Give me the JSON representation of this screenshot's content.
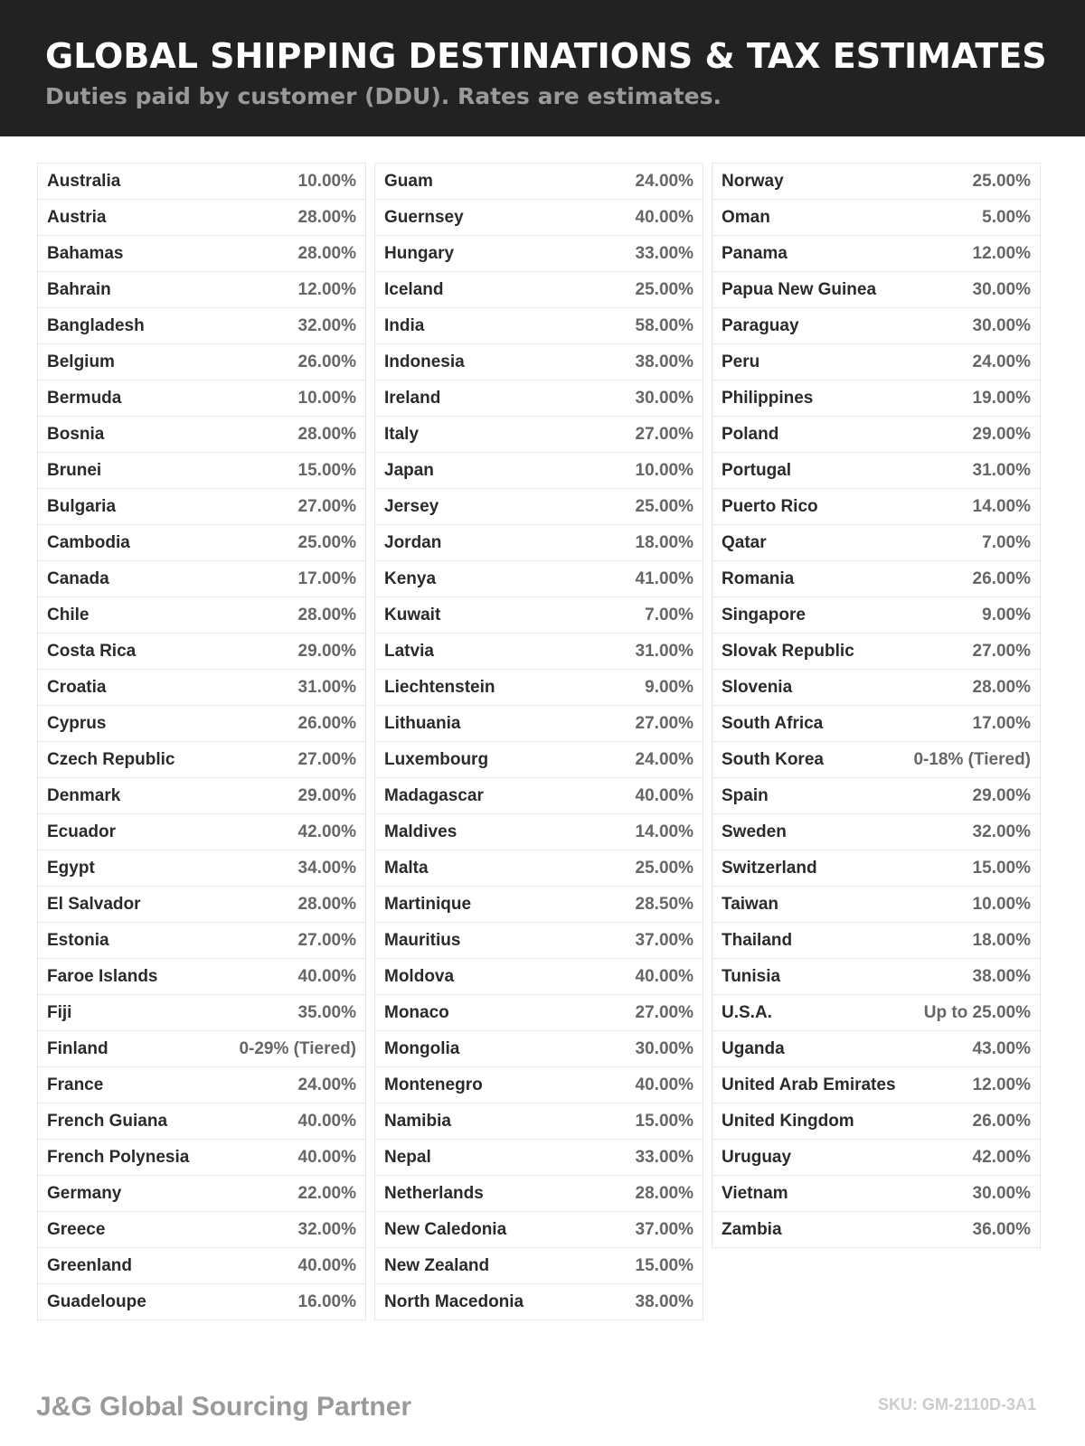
{
  "header": {
    "title": "GLOBAL SHIPPING DESTINATIONS & TAX ESTIMATES",
    "subtitle": "Duties paid by customer (DDU). Rates are estimates."
  },
  "columns": [
    [
      {
        "country": "Australia",
        "rate": "10.00%"
      },
      {
        "country": "Austria",
        "rate": "28.00%"
      },
      {
        "country": "Bahamas",
        "rate": "28.00%"
      },
      {
        "country": "Bahrain",
        "rate": "12.00%"
      },
      {
        "country": "Bangladesh",
        "rate": "32.00%"
      },
      {
        "country": "Belgium",
        "rate": "26.00%"
      },
      {
        "country": "Bermuda",
        "rate": "10.00%"
      },
      {
        "country": "Bosnia",
        "rate": "28.00%"
      },
      {
        "country": "Brunei",
        "rate": "15.00%"
      },
      {
        "country": "Bulgaria",
        "rate": "27.00%"
      },
      {
        "country": "Cambodia",
        "rate": "25.00%"
      },
      {
        "country": "Canada",
        "rate": "17.00%"
      },
      {
        "country": "Chile",
        "rate": "28.00%"
      },
      {
        "country": "Costa Rica",
        "rate": "29.00%"
      },
      {
        "country": "Croatia",
        "rate": "31.00%"
      },
      {
        "country": "Cyprus",
        "rate": "26.00%"
      },
      {
        "country": "Czech Republic",
        "rate": "27.00%"
      },
      {
        "country": "Denmark",
        "rate": "29.00%"
      },
      {
        "country": "Ecuador",
        "rate": "42.00%"
      },
      {
        "country": "Egypt",
        "rate": "34.00%"
      },
      {
        "country": "El Salvador",
        "rate": "28.00%"
      },
      {
        "country": "Estonia",
        "rate": "27.00%"
      },
      {
        "country": "Faroe Islands",
        "rate": "40.00%"
      },
      {
        "country": "Fiji",
        "rate": "35.00%"
      },
      {
        "country": "Finland",
        "rate": "0-29% (Tiered)"
      },
      {
        "country": "France",
        "rate": "24.00%"
      },
      {
        "country": "French Guiana",
        "rate": "40.00%"
      },
      {
        "country": "French Polynesia",
        "rate": "40.00%"
      },
      {
        "country": "Germany",
        "rate": "22.00%"
      },
      {
        "country": "Greece",
        "rate": "32.00%"
      },
      {
        "country": "Greenland",
        "rate": "40.00%"
      },
      {
        "country": "Guadeloupe",
        "rate": "16.00%"
      }
    ],
    [
      {
        "country": "Guam",
        "rate": "24.00%"
      },
      {
        "country": "Guernsey",
        "rate": "40.00%"
      },
      {
        "country": "Hungary",
        "rate": "33.00%"
      },
      {
        "country": "Iceland",
        "rate": "25.00%"
      },
      {
        "country": "India",
        "rate": "58.00%"
      },
      {
        "country": "Indonesia",
        "rate": "38.00%"
      },
      {
        "country": "Ireland",
        "rate": "30.00%"
      },
      {
        "country": "Italy",
        "rate": "27.00%"
      },
      {
        "country": "Japan",
        "rate": "10.00%"
      },
      {
        "country": "Jersey",
        "rate": "25.00%"
      },
      {
        "country": "Jordan",
        "rate": "18.00%"
      },
      {
        "country": "Kenya",
        "rate": "41.00%"
      },
      {
        "country": "Kuwait",
        "rate": "7.00%"
      },
      {
        "country": "Latvia",
        "rate": "31.00%"
      },
      {
        "country": "Liechtenstein",
        "rate": "9.00%"
      },
      {
        "country": "Lithuania",
        "rate": "27.00%"
      },
      {
        "country": "Luxembourg",
        "rate": "24.00%"
      },
      {
        "country": "Madagascar",
        "rate": "40.00%"
      },
      {
        "country": "Maldives",
        "rate": "14.00%"
      },
      {
        "country": "Malta",
        "rate": "25.00%"
      },
      {
        "country": "Martinique",
        "rate": "28.50%"
      },
      {
        "country": "Mauritius",
        "rate": "37.00%"
      },
      {
        "country": "Moldova",
        "rate": "40.00%"
      },
      {
        "country": "Monaco",
        "rate": "27.00%"
      },
      {
        "country": "Mongolia",
        "rate": "30.00%"
      },
      {
        "country": "Montenegro",
        "rate": "40.00%"
      },
      {
        "country": "Namibia",
        "rate": "15.00%"
      },
      {
        "country": "Nepal",
        "rate": "33.00%"
      },
      {
        "country": "Netherlands",
        "rate": "28.00%"
      },
      {
        "country": "New Caledonia",
        "rate": "37.00%"
      },
      {
        "country": "New Zealand",
        "rate": "15.00%"
      },
      {
        "country": "North Macedonia",
        "rate": "38.00%"
      }
    ],
    [
      {
        "country": "Norway",
        "rate": "25.00%"
      },
      {
        "country": "Oman",
        "rate": "5.00%"
      },
      {
        "country": "Panama",
        "rate": "12.00%"
      },
      {
        "country": "Papua New Guinea",
        "rate": "30.00%"
      },
      {
        "country": "Paraguay",
        "rate": "30.00%"
      },
      {
        "country": "Peru",
        "rate": "24.00%"
      },
      {
        "country": "Philippines",
        "rate": "19.00%"
      },
      {
        "country": "Poland",
        "rate": "29.00%"
      },
      {
        "country": "Portugal",
        "rate": "31.00%"
      },
      {
        "country": "Puerto Rico",
        "rate": "14.00%"
      },
      {
        "country": "Qatar",
        "rate": "7.00%"
      },
      {
        "country": "Romania",
        "rate": "26.00%"
      },
      {
        "country": "Singapore",
        "rate": "9.00%"
      },
      {
        "country": "Slovak Republic",
        "rate": "27.00%"
      },
      {
        "country": "Slovenia",
        "rate": "28.00%"
      },
      {
        "country": "South Africa",
        "rate": "17.00%"
      },
      {
        "country": "South Korea",
        "rate": "0-18% (Tiered)"
      },
      {
        "country": "Spain",
        "rate": "29.00%"
      },
      {
        "country": "Sweden",
        "rate": "32.00%"
      },
      {
        "country": "Switzerland",
        "rate": "15.00%"
      },
      {
        "country": "Taiwan",
        "rate": "10.00%"
      },
      {
        "country": "Thailand",
        "rate": "18.00%"
      },
      {
        "country": "Tunisia",
        "rate": "38.00%"
      },
      {
        "country": "U.S.A.",
        "rate": "Up to 25.00%"
      },
      {
        "country": "Uganda",
        "rate": "43.00%"
      },
      {
        "country": "United Arab Emirates",
        "rate": "12.00%"
      },
      {
        "country": "United Kingdom",
        "rate": "26.00%"
      },
      {
        "country": "Uruguay",
        "rate": "42.00%"
      },
      {
        "country": "Vietnam",
        "rate": "30.00%"
      },
      {
        "country": "Zambia",
        "rate": "36.00%"
      }
    ]
  ],
  "footer": {
    "brand": "J&G Global Sourcing Partner",
    "sku": "SKU: GM-2110D-3A1"
  }
}
